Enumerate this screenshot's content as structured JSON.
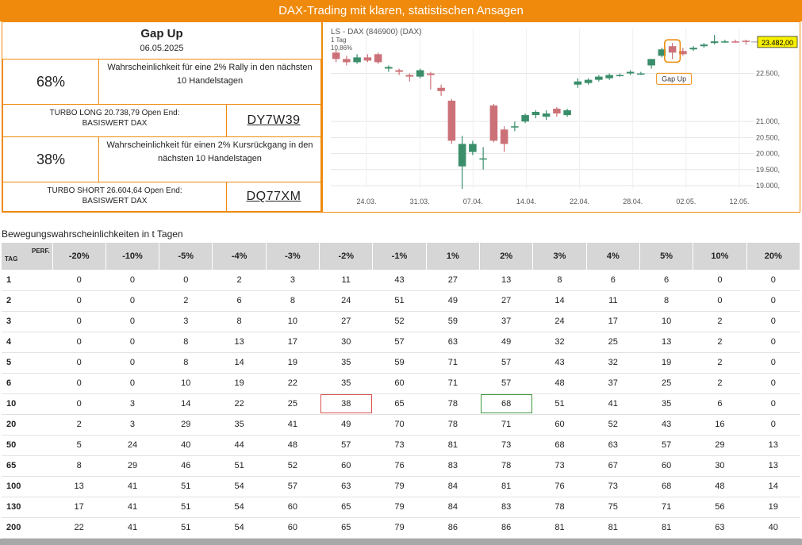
{
  "banner": "DAX-Trading mit klaren, statistischen Ansagen",
  "signal": {
    "title": "Gap Up",
    "date": "06.05.2025",
    "long_pct": "68%",
    "long_desc": "Wahrscheinlichkeit für eine 2% Rally in den nächsten 10 Handelstagen",
    "long_turbo_line1": "TURBO LONG 20.738,79 Open End:",
    "long_turbo_line2": "BASISWERT DAX",
    "long_wkn": "DY7W39",
    "short_pct": "38%",
    "short_desc": "Wahrscheinlichkeit für einen 2% Kursrückgang in den nächsten 10 Handelstagen",
    "short_turbo_line1": "TURBO SHORT 26.604,64 Open End:",
    "short_turbo_line2": "BASISWERT DAX",
    "short_wkn": "DQ77XM"
  },
  "chart_data": {
    "type": "candlestick",
    "title": "LS - DAX (846900) (DAX)",
    "subtitle_line1": "1 Tag",
    "subtitle_line2": "10,86%",
    "last_price_label": "23.482,00",
    "annotation": "Gap Up",
    "y_ticks": [
      19000,
      19500,
      20000,
      20500,
      21000,
      22500
    ],
    "y_tick_labels": [
      "19.000,",
      "19.500,",
      "20.000,",
      "20.500,",
      "21.000,",
      "22.500,"
    ],
    "x_tick_labels": [
      "24.03.",
      "31.03.",
      "07.04.",
      "14.04.",
      "22.04.",
      "28.04.",
      "02.05.",
      "12.05."
    ],
    "ylim": [
      18900,
      23900
    ],
    "colors": {
      "up": "#3a8e6a",
      "down": "#cc7178",
      "accent": "#ef8a0c",
      "last_price_bg": "#f7f000"
    },
    "candles": [
      {
        "o": 23150,
        "c": 22950,
        "h": 23250,
        "l": 22850
      },
      {
        "o": 22950,
        "c": 22850,
        "h": 23050,
        "l": 22750
      },
      {
        "o": 22850,
        "c": 23000,
        "h": 23100,
        "l": 22800
      },
      {
        "o": 23000,
        "c": 22900,
        "h": 23100,
        "l": 22850
      },
      {
        "o": 23100,
        "c": 22850,
        "h": 23150,
        "l": 22800
      },
      {
        "o": 22650,
        "c": 22700,
        "h": 22750,
        "l": 22550
      },
      {
        "o": 22600,
        "c": 22550,
        "h": 22650,
        "l": 22450
      },
      {
        "o": 22450,
        "c": 22400,
        "h": 22500,
        "l": 22250
      },
      {
        "o": 22400,
        "c": 22600,
        "h": 22650,
        "l": 22350
      },
      {
        "o": 22500,
        "c": 22450,
        "h": 22550,
        "l": 22000
      },
      {
        "o": 22050,
        "c": 21950,
        "h": 22150,
        "l": 21800
      },
      {
        "o": 21650,
        "c": 20400,
        "h": 21700,
        "l": 20300
      },
      {
        "o": 19600,
        "c": 20300,
        "h": 20550,
        "l": 18900
      },
      {
        "o": 20050,
        "c": 20300,
        "h": 20400,
        "l": 19950
      },
      {
        "o": 19850,
        "c": 19850,
        "h": 20200,
        "l": 19500
      },
      {
        "o": 21500,
        "c": 20400,
        "h": 21550,
        "l": 20350
      },
      {
        "o": 20750,
        "c": 20300,
        "h": 20850,
        "l": 20050
      },
      {
        "o": 20850,
        "c": 20850,
        "h": 21000,
        "l": 20700
      },
      {
        "o": 21000,
        "c": 21200,
        "h": 21250,
        "l": 20950
      },
      {
        "o": 21200,
        "c": 21300,
        "h": 21350,
        "l": 21100
      },
      {
        "o": 21150,
        "c": 21250,
        "h": 21350,
        "l": 21050
      },
      {
        "o": 21400,
        "c": 21250,
        "h": 21450,
        "l": 21150
      },
      {
        "o": 21200,
        "c": 21350,
        "h": 21400,
        "l": 21150
      },
      {
        "o": 22150,
        "c": 22250,
        "h": 22350,
        "l": 22050
      },
      {
        "o": 22200,
        "c": 22300,
        "h": 22350,
        "l": 22150
      },
      {
        "o": 22300,
        "c": 22400,
        "h": 22450,
        "l": 22250
      },
      {
        "o": 22350,
        "c": 22450,
        "h": 22500,
        "l": 22300
      },
      {
        "o": 22450,
        "c": 22450,
        "h": 22500,
        "l": 22400
      },
      {
        "o": 22500,
        "c": 22550,
        "h": 22600,
        "l": 22450
      },
      {
        "o": 22500,
        "c": 22500,
        "h": 22550,
        "l": 22450
      },
      {
        "o": 22750,
        "c": 22950,
        "h": 22950,
        "l": 22650
      },
      {
        "o": 23050,
        "c": 23250,
        "h": 23300,
        "l": 23000
      },
      {
        "o": 23350,
        "c": 23150,
        "h": 23450,
        "l": 22950
      },
      {
        "o": 23200,
        "c": 23100,
        "h": 23300,
        "l": 23050
      },
      {
        "o": 23250,
        "c": 23300,
        "h": 23350,
        "l": 23200
      },
      {
        "o": 23350,
        "c": 23400,
        "h": 23450,
        "l": 23300
      },
      {
        "o": 23450,
        "c": 23500,
        "h": 23700,
        "l": 23400
      },
      {
        "o": 23500,
        "c": 23500,
        "h": 23550,
        "l": 23450
      },
      {
        "o": 23500,
        "c": 23480,
        "h": 23550,
        "l": 23450
      },
      {
        "o": 23520,
        "c": 23482,
        "h": 23550,
        "l": 23400
      }
    ],
    "gap_up_candle_index": 32
  },
  "table": {
    "title": "Bewegungswahrscheinlichkeiten in t Tagen",
    "tag_label": "TAG",
    "perf_label": "PERF.",
    "headers": [
      "-20%",
      "-10%",
      "-5%",
      "-4%",
      "-3%",
      "-2%",
      "-1%",
      "1%",
      "2%",
      "3%",
      "4%",
      "5%",
      "10%",
      "20%"
    ],
    "rows": [
      {
        "tag": "1",
        "cells": [
          "0",
          "0",
          "0",
          "2",
          "3",
          "11",
          "43",
          "27",
          "13",
          "8",
          "6",
          "6",
          "0",
          "0"
        ]
      },
      {
        "tag": "2",
        "cells": [
          "0",
          "0",
          "2",
          "6",
          "8",
          "24",
          "51",
          "49",
          "27",
          "14",
          "11",
          "8",
          "0",
          "0"
        ]
      },
      {
        "tag": "3",
        "cells": [
          "0",
          "0",
          "3",
          "8",
          "10",
          "27",
          "52",
          "59",
          "37",
          "24",
          "17",
          "10",
          "2",
          "0"
        ]
      },
      {
        "tag": "4",
        "cells": [
          "0",
          "0",
          "8",
          "13",
          "17",
          "30",
          "57",
          "63",
          "49",
          "32",
          "25",
          "13",
          "2",
          "0"
        ]
      },
      {
        "tag": "5",
        "cells": [
          "0",
          "0",
          "8",
          "14",
          "19",
          "35",
          "59",
          "71",
          "57",
          "43",
          "32",
          "19",
          "2",
          "0"
        ]
      },
      {
        "tag": "6",
        "cells": [
          "0",
          "0",
          "10",
          "19",
          "22",
          "35",
          "60",
          "71",
          "57",
          "48",
          "37",
          "25",
          "2",
          "0"
        ]
      },
      {
        "tag": "10",
        "cells": [
          "0",
          "3",
          "14",
          "22",
          "25",
          "38",
          "65",
          "78",
          "68",
          "51",
          "41",
          "35",
          "6",
          "0"
        ]
      },
      {
        "tag": "20",
        "cells": [
          "2",
          "3",
          "29",
          "35",
          "41",
          "49",
          "70",
          "78",
          "71",
          "60",
          "52",
          "43",
          "16",
          "0"
        ]
      },
      {
        "tag": "50",
        "cells": [
          "5",
          "24",
          "40",
          "44",
          "48",
          "57",
          "73",
          "81",
          "73",
          "68",
          "63",
          "57",
          "29",
          "13"
        ]
      },
      {
        "tag": "65",
        "cells": [
          "8",
          "29",
          "46",
          "51",
          "52",
          "60",
          "76",
          "83",
          "78",
          "73",
          "67",
          "60",
          "30",
          "13"
        ]
      },
      {
        "tag": "100",
        "cells": [
          "13",
          "41",
          "51",
          "54",
          "57",
          "63",
          "79",
          "84",
          "81",
          "76",
          "73",
          "68",
          "48",
          "14"
        ]
      },
      {
        "tag": "130",
        "cells": [
          "17",
          "41",
          "51",
          "54",
          "60",
          "65",
          "79",
          "84",
          "83",
          "78",
          "75",
          "71",
          "56",
          "19"
        ]
      },
      {
        "tag": "200",
        "cells": [
          "22",
          "41",
          "51",
          "54",
          "60",
          "65",
          "79",
          "86",
          "86",
          "81",
          "81",
          "81",
          "63",
          "40"
        ]
      }
    ],
    "highlight_red": {
      "row": 6,
      "col": 5
    },
    "highlight_green": {
      "row": 6,
      "col": 8
    }
  }
}
